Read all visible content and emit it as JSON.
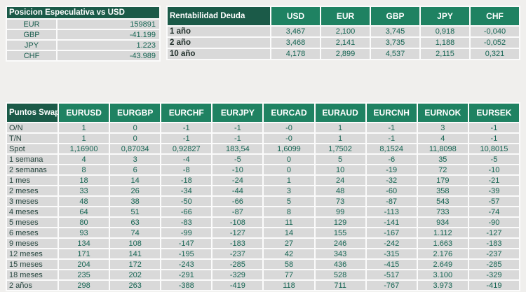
{
  "colors": {
    "page_background": "#f0efed",
    "table_backing": "#fbfbfb",
    "cell_background": "#d9d9d9",
    "title_header_green": "#1b5a48",
    "column_header_green": "#1f8262",
    "value_text_green": "#166553"
  },
  "tables": {
    "speculative": {
      "title": "Posicion Especulativa vs USD",
      "rows": [
        {
          "label": "EUR",
          "values": [
            "159891"
          ]
        },
        {
          "label": "GBP",
          "values": [
            "-41.199"
          ]
        },
        {
          "label": "JPY",
          "values": [
            "1.223"
          ]
        },
        {
          "label": "CHF",
          "values": [
            "-43.989"
          ]
        }
      ]
    },
    "debt": {
      "title": "Rentabilidad Deuda",
      "columns": [
        "USD",
        "EUR",
        "GBP",
        "JPY",
        "CHF"
      ],
      "rows": [
        {
          "label": "1 año",
          "values": [
            "3,467",
            "2,100",
            "3,745",
            "0,918",
            "-0,040"
          ]
        },
        {
          "label": "2 año",
          "values": [
            "3,468",
            "2,141",
            "3,735",
            "1,188",
            "-0,052"
          ]
        },
        {
          "label": "10 año",
          "values": [
            "4,178",
            "2,899",
            "4,537",
            "2,115",
            "0,321"
          ]
        }
      ]
    },
    "swap": {
      "title": "Puntos Swap",
      "columns": [
        "EURUSD",
        "EURGBP",
        "EURCHF",
        "EURJPY",
        "EURCAD",
        "EURAUD",
        "EURCNH",
        "EURNOK",
        "EURSEK"
      ],
      "rows": [
        {
          "label": "O/N",
          "values": [
            "1",
            "0",
            "-1",
            "-1",
            "-0",
            "1",
            "-1",
            "3",
            "-1"
          ]
        },
        {
          "label": "T/N",
          "values": [
            "1",
            "0",
            "-1",
            "-1",
            "-0",
            "1",
            "-1",
            "4",
            "-1"
          ]
        },
        {
          "label": "Spot",
          "values": [
            "1,16900",
            "0,87034",
            "0,92827",
            "183,54",
            "1,6099",
            "1,7502",
            "8,1524",
            "11,8098",
            "10,8015"
          ]
        },
        {
          "label": "1 semana",
          "values": [
            "4",
            "3",
            "-4",
            "-5",
            "0",
            "5",
            "-6",
            "35",
            "-5"
          ]
        },
        {
          "label": "2 semanas",
          "values": [
            "8",
            "6",
            "-8",
            "-10",
            "0",
            "10",
            "-19",
            "72",
            "-10"
          ]
        },
        {
          "label": "1 mes",
          "values": [
            "18",
            "14",
            "-18",
            "-24",
            "1",
            "24",
            "-32",
            "179",
            "-21"
          ]
        },
        {
          "label": "2 meses",
          "values": [
            "33",
            "26",
            "-34",
            "-44",
            "3",
            "48",
            "-60",
            "358",
            "-39"
          ]
        },
        {
          "label": "3 meses",
          "values": [
            "48",
            "38",
            "-50",
            "-66",
            "5",
            "73",
            "-87",
            "543",
            "-57"
          ]
        },
        {
          "label": "4 meses",
          "values": [
            "64",
            "51",
            "-66",
            "-87",
            "8",
            "99",
            "-113",
            "733",
            "-74"
          ]
        },
        {
          "label": "5 meses",
          "values": [
            "80",
            "63",
            "-83",
            "-108",
            "11",
            "129",
            "-141",
            "934",
            "-90"
          ]
        },
        {
          "label": "6 meses",
          "values": [
            "93",
            "74",
            "-99",
            "-127",
            "14",
            "155",
            "-167",
            "1.112",
            "-127"
          ]
        },
        {
          "label": "9 meses",
          "values": [
            "134",
            "108",
            "-147",
            "-183",
            "27",
            "246",
            "-242",
            "1.663",
            "-183"
          ]
        },
        {
          "label": "12 meses",
          "values": [
            "171",
            "141",
            "-195",
            "-237",
            "42",
            "343",
            "-315",
            "2.176",
            "-237"
          ]
        },
        {
          "label": "15 meses",
          "values": [
            "204",
            "172",
            "-243",
            "-285",
            "58",
            "436",
            "-415",
            "2.649",
            "-285"
          ]
        },
        {
          "label": "18 meses",
          "values": [
            "235",
            "202",
            "-291",
            "-329",
            "77",
            "528",
            "-517",
            "3.100",
            "-329"
          ]
        },
        {
          "label": "2 años",
          "values": [
            "298",
            "263",
            "-388",
            "-419",
            "118",
            "711",
            "-767",
            "3.973",
            "-419"
          ]
        }
      ]
    }
  }
}
